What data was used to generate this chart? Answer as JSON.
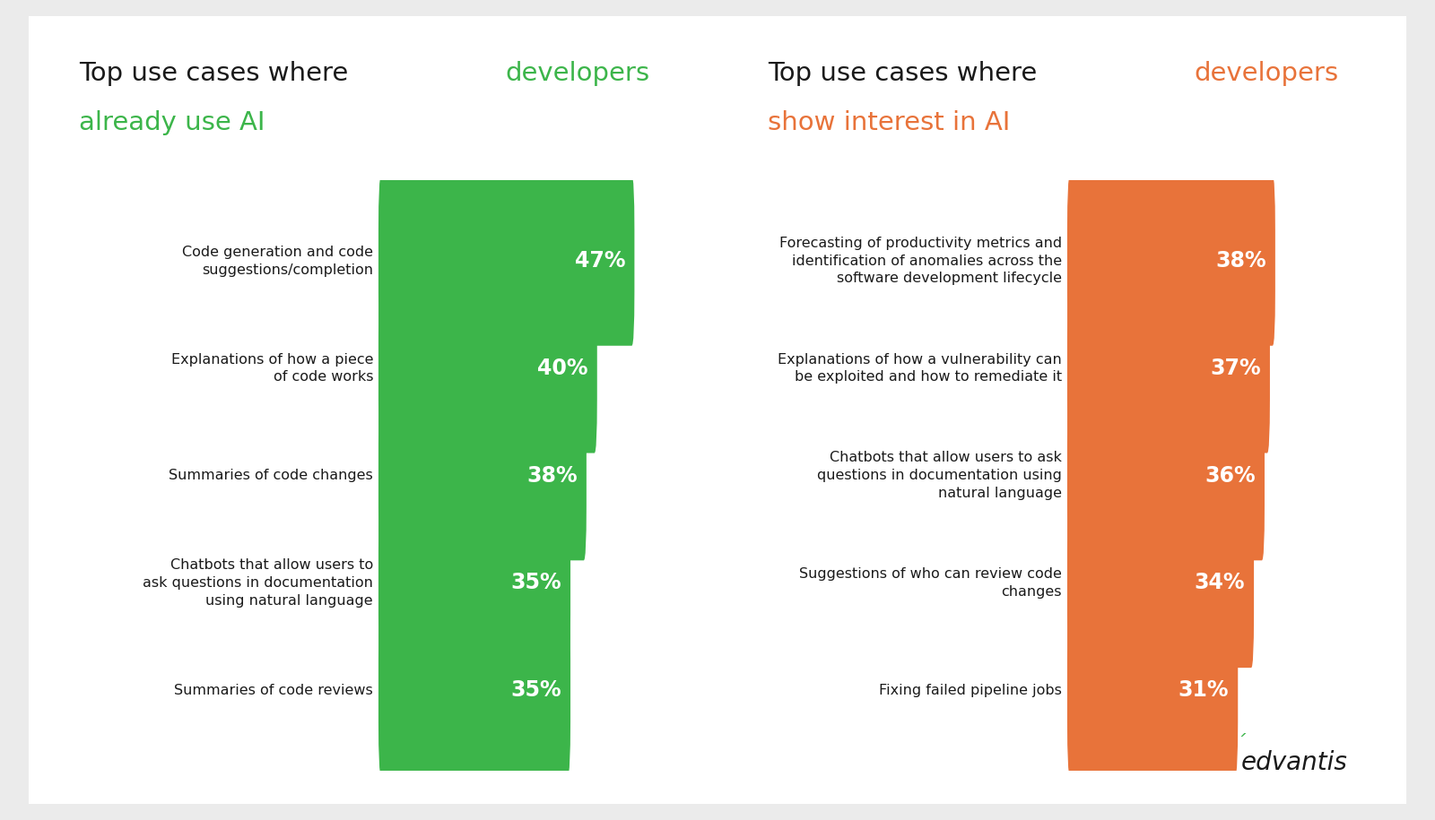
{
  "left_color": "#3cb54a",
  "right_color": "#e8733a",
  "text_color": "#1a1a1a",
  "bg_color": "#ebebeb",
  "card_color": "#ffffff",
  "left_bars": [
    {
      "label": "Code generation and code\nsuggestions/completion",
      "value": 47
    },
    {
      "label": "Explanations of how a piece\nof code works",
      "value": 40
    },
    {
      "label": "Summaries of code changes",
      "value": 38
    },
    {
      "label": "Chatbots that allow users to\nask questions in documentation\nusing natural language",
      "value": 35
    },
    {
      "label": "Summaries of code reviews",
      "value": 35
    }
  ],
  "right_bars": [
    {
      "label": "Forecasting of productivity metrics and\nidentification of anomalies across the\nsoftware development lifecycle",
      "value": 38
    },
    {
      "label": "Explanations of how a vulnerability can\nbe exploited and how to remediate it",
      "value": 37
    },
    {
      "label": "Chatbots that allow users to ask\nquestions in documentation using\nnatural language",
      "value": 36
    },
    {
      "label": "Suggestions of who can review code\nchanges",
      "value": 34
    },
    {
      "label": "Fixing failed pipeline jobs",
      "value": 31
    }
  ],
  "pct_fontsize": 17,
  "label_fontsize": 11.5,
  "title_fontsize": 21
}
